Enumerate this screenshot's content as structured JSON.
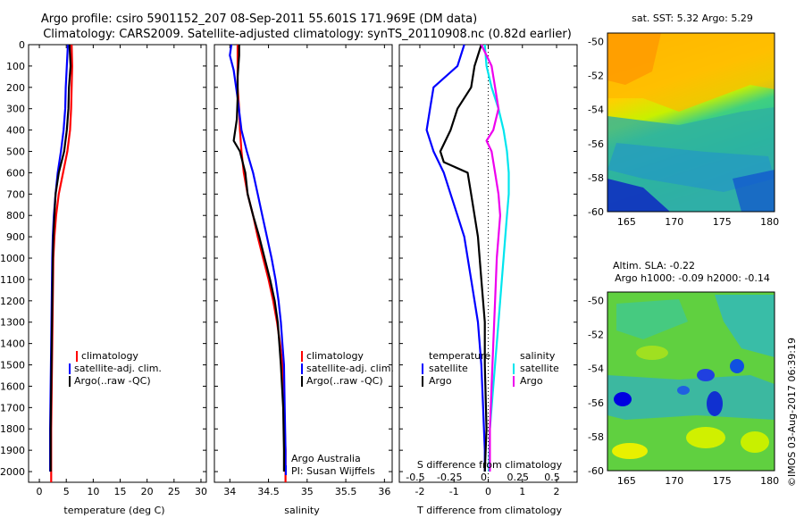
{
  "title_line1": "Argo profile: csiro 5901152_207 08-Sep-2011 55.601S 171.969E (DM data)",
  "title_line2": "Climatology: CARS2009. Satellite-adjusted climatology: synTS_20110908.nc (0.82d earlier)",
  "footer_right": "©IMOS 03-Aug-2017 06:39:19",
  "colors": {
    "climatology": "#ff0000",
    "satellite": "#0000ff",
    "argo": "#000000",
    "sal_satellite": "#00e5ee",
    "sal_argo": "#ee00ee"
  },
  "chart_data": [
    {
      "type": "line",
      "name": "temperature_profile",
      "xlabel": "temperature (deg C)",
      "ylabel": "",
      "xlim": [
        -2,
        31
      ],
      "ylim": [
        0,
        2050
      ],
      "y_reversed": true,
      "xticks": [
        "0",
        "5",
        "10",
        "15",
        "20",
        "25",
        "30"
      ],
      "xtick_values": [
        0,
        5,
        10,
        15,
        20,
        25,
        30
      ],
      "yticks": [
        "0",
        "100",
        "200",
        "300",
        "400",
        "500",
        "600",
        "700",
        "800",
        "900",
        "1000",
        "1100",
        "1200",
        "1300",
        "1400",
        "1500",
        "1600",
        "1700",
        "1800",
        "1900",
        "2000"
      ],
      "legend": [
        "climatology",
        "satellite-adj. clim.",
        "Argo(..raw -QC)"
      ],
      "series": [
        {
          "name": "climatology",
          "color_key": "climatology",
          "points": [
            [
              6.0,
              0
            ],
            [
              6.1,
              100
            ],
            [
              6.0,
              200
            ],
            [
              5.9,
              300
            ],
            [
              5.7,
              400
            ],
            [
              5.2,
              500
            ],
            [
              4.4,
              600
            ],
            [
              3.6,
              700
            ],
            [
              3.1,
              800
            ],
            [
              2.8,
              900
            ],
            [
              2.6,
              1000
            ],
            [
              2.5,
              1200
            ],
            [
              2.4,
              1400
            ],
            [
              2.3,
              1600
            ],
            [
              2.2,
              1800
            ],
            [
              2.2,
              2000
            ],
            [
              2.2,
              2050
            ]
          ]
        },
        {
          "name": "satellite-adj. clim.",
          "color_key": "satellite",
          "points": [
            [
              5.3,
              0
            ],
            [
              5.1,
              100
            ],
            [
              4.9,
              200
            ],
            [
              4.8,
              300
            ],
            [
              4.5,
              400
            ],
            [
              4.0,
              500
            ],
            [
              3.4,
              600
            ],
            [
              3.0,
              700
            ],
            [
              2.7,
              800
            ],
            [
              2.5,
              900
            ],
            [
              2.4,
              1000
            ],
            [
              2.3,
              1200
            ],
            [
              2.2,
              1400
            ],
            [
              2.1,
              1600
            ],
            [
              2.0,
              1800
            ],
            [
              2.0,
              2000
            ]
          ]
        },
        {
          "name": "Argo(..raw -QC)",
          "color_key": "argo",
          "points": [
            [
              5.6,
              0
            ],
            [
              5.8,
              100
            ],
            [
              5.5,
              200
            ],
            [
              5.4,
              300
            ],
            [
              5.1,
              400
            ],
            [
              4.6,
              500
            ],
            [
              3.6,
              600
            ],
            [
              3.0,
              700
            ],
            [
              2.8,
              800
            ],
            [
              2.6,
              900
            ],
            [
              2.5,
              1000
            ],
            [
              2.4,
              1200
            ],
            [
              2.3,
              1400
            ],
            [
              2.2,
              1600
            ],
            [
              2.1,
              1800
            ],
            [
              2.1,
              2000
            ]
          ]
        }
      ]
    },
    {
      "type": "line",
      "name": "salinity_profile",
      "xlabel": "salinity",
      "xlim": [
        33.8,
        36.1
      ],
      "ylim": [
        0,
        2050
      ],
      "y_reversed": true,
      "xticks": [
        "34",
        "34.5",
        "35",
        "35.5",
        "36"
      ],
      "xtick_values": [
        34,
        34.5,
        35,
        35.5,
        36
      ],
      "legend": [
        "climatology",
        "satellite-adj. clim.",
        "Argo(..raw -QC)"
      ],
      "annotation": [
        "Argo Australia",
        "PI: Susan Wijffels"
      ],
      "series": [
        {
          "name": "climatology",
          "color_key": "climatology",
          "points": [
            [
              34.1,
              0
            ],
            [
              34.1,
              100
            ],
            [
              34.1,
              200
            ],
            [
              34.12,
              300
            ],
            [
              34.13,
              400
            ],
            [
              34.15,
              500
            ],
            [
              34.18,
              600
            ],
            [
              34.23,
              700
            ],
            [
              34.3,
              800
            ],
            [
              34.36,
              900
            ],
            [
              34.43,
              1000
            ],
            [
              34.5,
              1100
            ],
            [
              34.56,
              1200
            ],
            [
              34.61,
              1300
            ],
            [
              34.65,
              1400
            ],
            [
              34.68,
              1500
            ],
            [
              34.7,
              1700
            ],
            [
              34.72,
              1900
            ],
            [
              34.72,
              2050
            ]
          ]
        },
        {
          "name": "satellite-adj. clim.",
          "color_key": "satellite",
          "points": [
            [
              34.02,
              0
            ],
            [
              34.0,
              50
            ],
            [
              34.05,
              120
            ],
            [
              34.1,
              250
            ],
            [
              34.15,
              400
            ],
            [
              34.22,
              500
            ],
            [
              34.3,
              600
            ],
            [
              34.36,
              700
            ],
            [
              34.42,
              800
            ],
            [
              34.48,
              900
            ],
            [
              34.54,
              1000
            ],
            [
              34.59,
              1100
            ],
            [
              34.63,
              1200
            ],
            [
              34.66,
              1300
            ],
            [
              34.68,
              1400
            ],
            [
              34.7,
              1500
            ],
            [
              34.71,
              1700
            ],
            [
              34.72,
              1900
            ],
            [
              34.72,
              2000
            ]
          ]
        },
        {
          "name": "Argo(..raw -QC)",
          "color_key": "argo",
          "points": [
            [
              34.12,
              0
            ],
            [
              34.12,
              50
            ],
            [
              34.1,
              150
            ],
            [
              34.1,
              250
            ],
            [
              34.09,
              350
            ],
            [
              34.05,
              450
            ],
            [
              34.13,
              500
            ],
            [
              34.2,
              600
            ],
            [
              34.23,
              700
            ],
            [
              34.3,
              800
            ],
            [
              34.38,
              900
            ],
            [
              34.45,
              1000
            ],
            [
              34.52,
              1100
            ],
            [
              34.58,
              1200
            ],
            [
              34.62,
              1300
            ],
            [
              34.64,
              1400
            ],
            [
              34.66,
              1500
            ],
            [
              34.69,
              1700
            ],
            [
              34.7,
              1900
            ],
            [
              34.7,
              2000
            ]
          ]
        }
      ]
    },
    {
      "type": "line",
      "name": "difference_profile",
      "xlabel": "T difference from climatology",
      "xlabel_top": "S difference from climatology",
      "xlim": [
        -2.6,
        2.6
      ],
      "ylim": [
        0,
        2050
      ],
      "y_reversed": true,
      "xticks": [
        "-2",
        "-1",
        "0",
        "1",
        "2"
      ],
      "xtick_values": [
        -2,
        -1,
        0,
        1,
        2
      ],
      "xticks_top": [
        "-0.5",
        "-0.25",
        "0",
        "0.25",
        "0.5"
      ],
      "xtick_top_values": [
        -0.5,
        -0.25,
        0,
        0.25,
        0.5
      ],
      "legend_left_title": "temperature",
      "legend_right_title": "salinity",
      "legend": [
        "satellite",
        "Argo",
        "satellite",
        "Argo"
      ],
      "series": [
        {
          "name": "satellite",
          "group": "temperature",
          "color_key": "satellite",
          "points": [
            [
              -0.7,
              0
            ],
            [
              -0.9,
              100
            ],
            [
              -1.6,
              200
            ],
            [
              -1.7,
              300
            ],
            [
              -1.8,
              400
            ],
            [
              -1.6,
              500
            ],
            [
              -1.3,
              600
            ],
            [
              -1.1,
              700
            ],
            [
              -0.9,
              800
            ],
            [
              -0.7,
              900
            ],
            [
              -0.5,
              1100
            ],
            [
              -0.3,
              1300
            ],
            [
              -0.2,
              1500
            ],
            [
              -0.15,
              1700
            ],
            [
              -0.1,
              1900
            ],
            [
              -0.1,
              2000
            ]
          ]
        },
        {
          "name": "Argo",
          "group": "temperature",
          "color_key": "argo",
          "points": [
            [
              -0.2,
              0
            ],
            [
              -0.3,
              50
            ],
            [
              -0.4,
              100
            ],
            [
              -0.5,
              200
            ],
            [
              -0.9,
              300
            ],
            [
              -1.1,
              400
            ],
            [
              -1.4,
              500
            ],
            [
              -1.3,
              550
            ],
            [
              -0.6,
              600
            ],
            [
              -0.5,
              700
            ],
            [
              -0.4,
              800
            ],
            [
              -0.3,
              900
            ],
            [
              -0.2,
              1100
            ],
            [
              -0.1,
              1300
            ],
            [
              -0.1,
              1500
            ],
            [
              -0.05,
              1800
            ],
            [
              -0.1,
              2000
            ]
          ]
        },
        {
          "name": "satellite",
          "group": "salinity",
          "color_key": "sal_satellite",
          "points": [
            [
              -0.1,
              0
            ],
            [
              -0.05,
              100
            ],
            [
              0.1,
              200
            ],
            [
              0.3,
              300
            ],
            [
              0.45,
              400
            ],
            [
              0.55,
              500
            ],
            [
              0.6,
              600
            ],
            [
              0.6,
              700
            ],
            [
              0.55,
              800
            ],
            [
              0.5,
              900
            ],
            [
              0.45,
              1000
            ],
            [
              0.35,
              1200
            ],
            [
              0.25,
              1400
            ],
            [
              0.15,
              1600
            ],
            [
              0.05,
              1800
            ],
            [
              0.02,
              2000
            ]
          ]
        },
        {
          "name": "Argo",
          "group": "salinity",
          "color_key": "sal_argo",
          "points": [
            [
              -0.2,
              0
            ],
            [
              0.1,
              100
            ],
            [
              0.2,
              200
            ],
            [
              0.3,
              300
            ],
            [
              0.15,
              400
            ],
            [
              -0.05,
              450
            ],
            [
              0.1,
              500
            ],
            [
              0.2,
              600
            ],
            [
              0.3,
              700
            ],
            [
              0.35,
              800
            ],
            [
              0.3,
              900
            ],
            [
              0.25,
              1000
            ],
            [
              0.2,
              1200
            ],
            [
              0.15,
              1400
            ],
            [
              0.1,
              1600
            ],
            [
              0.05,
              1800
            ],
            [
              0.05,
              2000
            ]
          ]
        }
      ]
    },
    {
      "type": "heatmap",
      "name": "sst_map",
      "title": "sat. SST: 5.32  Argo: 5.29",
      "xlim": [
        163,
        180.5
      ],
      "ylim": [
        -60,
        -49.5
      ],
      "xticks": [
        "165",
        "170",
        "175",
        "180"
      ],
      "xtick_values": [
        165,
        170,
        175,
        180
      ],
      "yticks": [
        "-50",
        "-52",
        "-54",
        "-56",
        "-58",
        "-60"
      ],
      "ytick_values": [
        -50,
        -52,
        -54,
        -56,
        -58,
        -60
      ],
      "argo_position": [
        171.97,
        -55.6
      ],
      "other_profiles": [
        [
          166.1,
          -50.9
        ],
        [
          169.4,
          -52.2
        ]
      ]
    },
    {
      "type": "heatmap",
      "name": "sla_map",
      "title": [
        "Altim. SLA: -0.22",
        "Argo h1000: -0.09 h2000: -0.14"
      ],
      "xlim": [
        163,
        180.5
      ],
      "ylim": [
        -60,
        -49.5
      ],
      "xticks": [
        "165",
        "170",
        "175",
        "180"
      ],
      "xtick_values": [
        165,
        170,
        175,
        180
      ],
      "yticks": [
        "-50",
        "-52",
        "-54",
        "-56",
        "-58",
        "-60"
      ],
      "ytick_values": [
        -50,
        -52,
        -54,
        -56,
        -58,
        -60
      ],
      "argo_position": [
        171.97,
        -55.6
      ],
      "other_profiles": [
        [
          166.1,
          -50.9
        ],
        [
          169.4,
          -52.5
        ]
      ]
    }
  ]
}
